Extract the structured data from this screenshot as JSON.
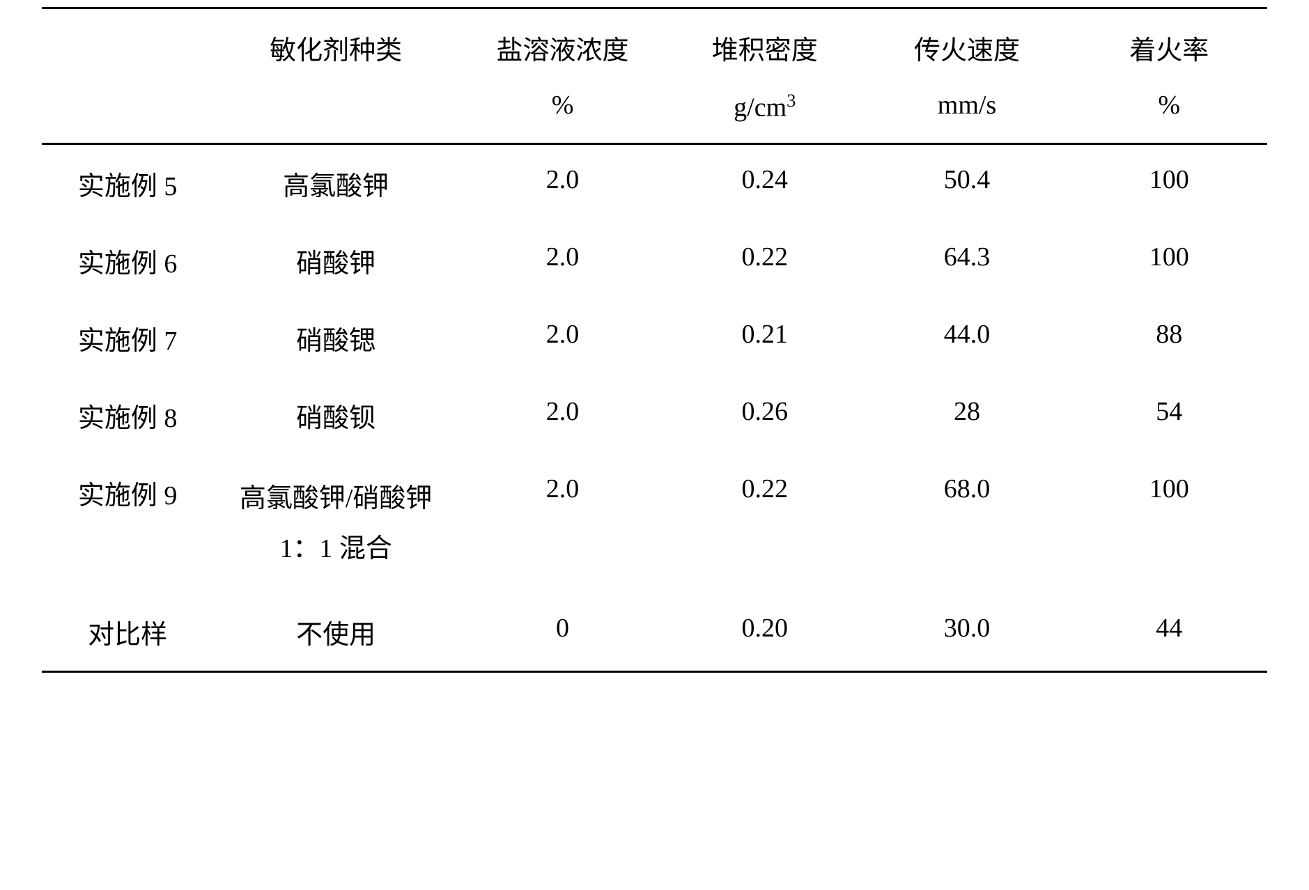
{
  "table": {
    "columns": [
      {
        "header1": "",
        "header2": ""
      },
      {
        "header1": "敏化剂种类",
        "header2": ""
      },
      {
        "header1": "盐溶液浓度",
        "header2": "%"
      },
      {
        "header1": "堆积密度",
        "header2": "g/cm³"
      },
      {
        "header1": "传火速度",
        "header2": "mm/s"
      },
      {
        "header1": "着火率",
        "header2": "%"
      }
    ],
    "rows": [
      {
        "label": "实施例 5",
        "sensitizer": "高氯酸钾",
        "conc": "2.0",
        "density": "0.24",
        "speed": "50.4",
        "rate": "100"
      },
      {
        "label": "实施例 6",
        "sensitizer": "硝酸钾",
        "conc": "2.0",
        "density": "0.22",
        "speed": "64.3",
        "rate": "100"
      },
      {
        "label": "实施例 7",
        "sensitizer": "硝酸锶",
        "conc": "2.0",
        "density": "0.21",
        "speed": "44.0",
        "rate": "88"
      },
      {
        "label": "实施例 8",
        "sensitizer": "硝酸钡",
        "conc": "2.0",
        "density": "0.26",
        "speed": "28",
        "rate": "54"
      },
      {
        "label": "实施例 9",
        "sensitizer": "高氯酸钾/硝酸钾 1：1 混合",
        "conc": "2.0",
        "density": "0.22",
        "speed": "68.0",
        "rate": "100"
      },
      {
        "label": "对比样",
        "sensitizer": "不使用",
        "conc": "0",
        "density": "0.20",
        "speed": "30.0",
        "rate": "44"
      }
    ],
    "style": {
      "border_color": "#000000",
      "border_width": 3,
      "background_color": "#ffffff",
      "text_color": "#000000",
      "font_size": 38,
      "font_family": "SimSun"
    }
  }
}
